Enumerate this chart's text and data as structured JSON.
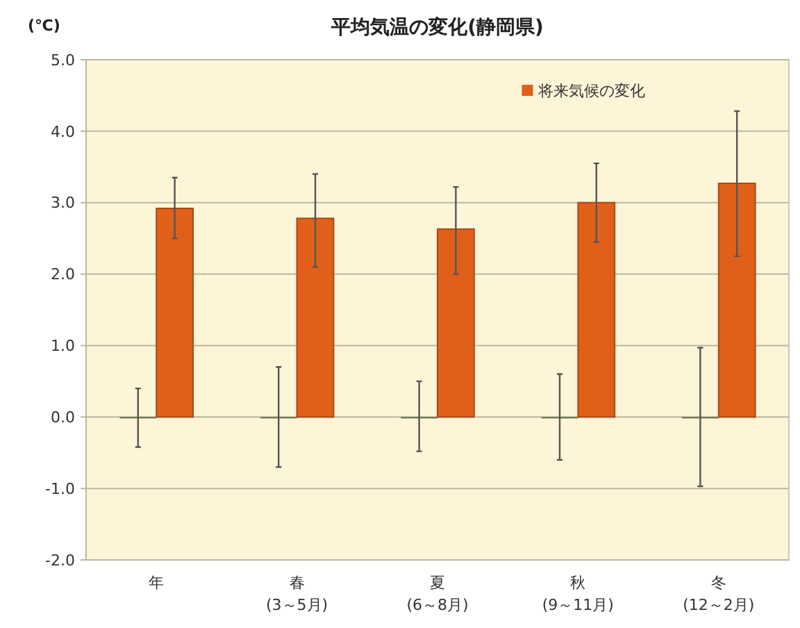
{
  "chart_data": {
    "type": "bar",
    "title": "平均気温の変化(静岡県)",
    "ylabel": "(℃)",
    "categories": [
      "年",
      "春\n(3～5月)",
      "夏\n(6～8月)",
      "秋\n(9～11月)",
      "冬\n(12～2月)"
    ],
    "series": [
      {
        "color": "#6b6b4a",
        "values": [
          0,
          0,
          0,
          0,
          0
        ],
        "errors": [
          [
            -0.42,
            0.4
          ],
          [
            -0.7,
            0.7
          ],
          [
            -0.48,
            0.5
          ],
          [
            -0.6,
            0.6
          ],
          [
            -0.97,
            0.97
          ]
        ]
      },
      {
        "name": "将来気候の変化",
        "color": "#e0601a",
        "values": [
          2.92,
          2.78,
          2.63,
          3.0,
          3.27
        ],
        "errors": [
          [
            2.5,
            3.35
          ],
          [
            2.1,
            3.4
          ],
          [
            2.0,
            3.22
          ],
          [
            2.45,
            3.55
          ],
          [
            2.25,
            4.28
          ]
        ]
      }
    ],
    "ylim": [
      -2,
      5
    ],
    "yticks": [
      {
        "value": -2,
        "label": "-2.0"
      },
      {
        "value": -1,
        "label": "-1.0"
      },
      {
        "value": 0,
        "label": "0.0"
      },
      {
        "value": 1,
        "label": "1.0"
      },
      {
        "value": 2,
        "label": "2.0"
      },
      {
        "value": 3,
        "label": "3.0"
      },
      {
        "value": 4,
        "label": "4.0"
      },
      {
        "value": 5,
        "label": "5.0"
      }
    ],
    "grid": "y",
    "legend": "top right"
  }
}
